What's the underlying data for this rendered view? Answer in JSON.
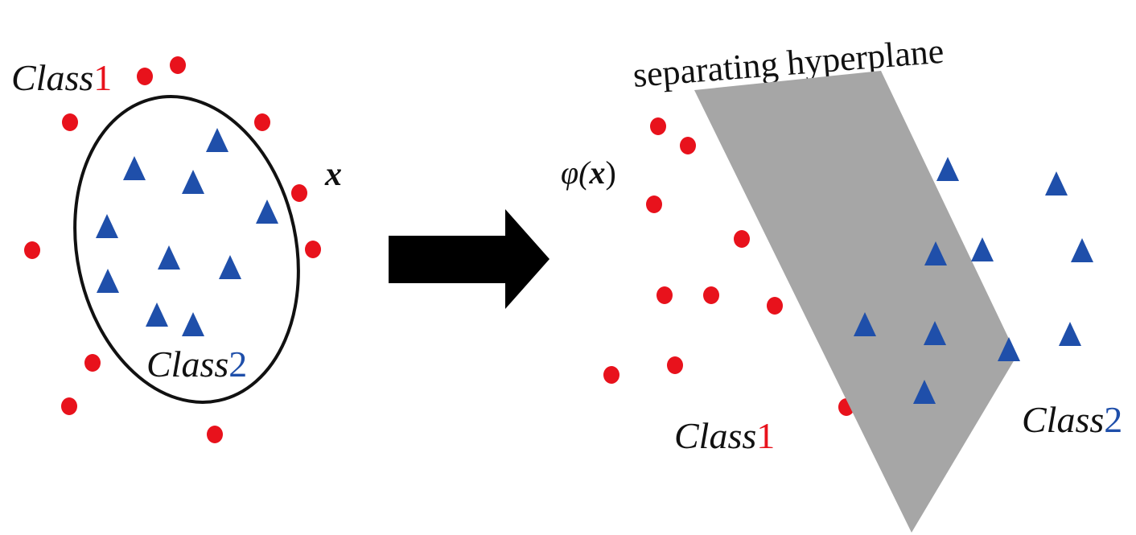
{
  "colors": {
    "class1": "#e8121c",
    "class2": "#1f4faa",
    "plane": "#a6a6a6",
    "arrow": "#000000",
    "ellipse": "#111111",
    "text": "#111111"
  },
  "left_panel": {
    "class1_label": {
      "word": "Class",
      "num": "1"
    },
    "class2_label": {
      "word": "Class",
      "num": "2"
    },
    "input_var": "x"
  },
  "right_panel": {
    "title": "separating hyperplane",
    "mapping_phi": "φ(",
    "mapping_var": "x",
    "mapping_close": ")",
    "class1_label": {
      "word": "Class",
      "num": "1"
    },
    "class2_label": {
      "word": "Class",
      "num": "2"
    }
  },
  "icons": {
    "class1_marker": "circle-dot-icon",
    "class2_marker": "triangle-icon",
    "transform": "right-arrow-icon"
  }
}
